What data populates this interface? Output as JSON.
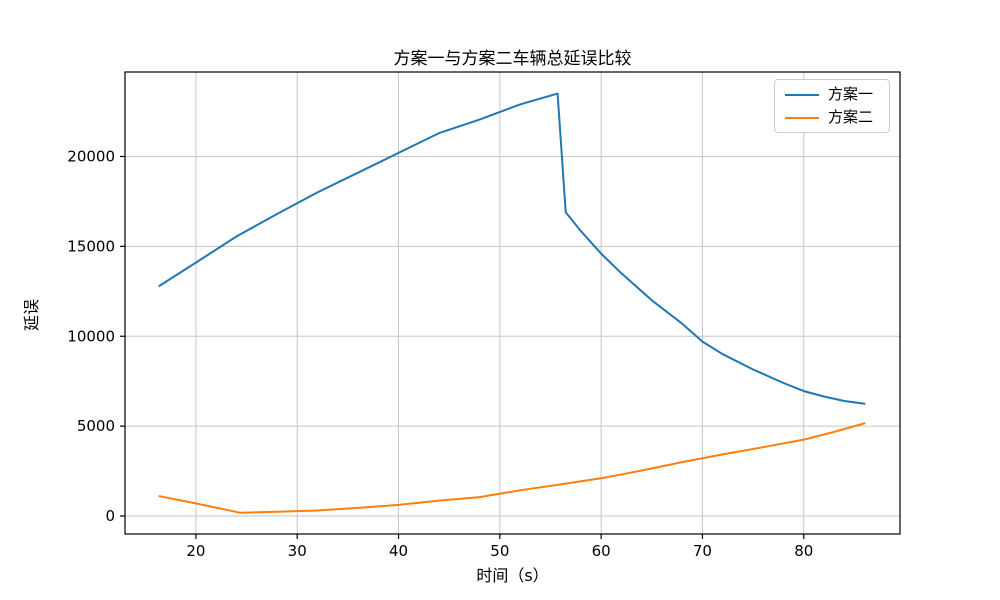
{
  "chart_data": {
    "type": "line",
    "title": "方案一与方案二车辆总延误比较",
    "xlabel": "时间（s）",
    "ylabel": "延误",
    "xlim": [
      13,
      89.5
    ],
    "ylim": [
      -1000,
      24700
    ],
    "xticks": [
      20,
      30,
      40,
      50,
      60,
      70,
      80
    ],
    "yticks": [
      0,
      5000,
      10000,
      15000,
      20000
    ],
    "grid": true,
    "grid_color": "#c6c6c6",
    "spine_color": "#000000",
    "background": "#ffffff",
    "legend_position": "upper right",
    "series": [
      {
        "name": "方案一",
        "color": "#1f77b4",
        "points": [
          [
            16.4,
            12800
          ],
          [
            20,
            14100
          ],
          [
            24,
            15550
          ],
          [
            28,
            16800
          ],
          [
            32,
            18000
          ],
          [
            36,
            19100
          ],
          [
            40,
            20200
          ],
          [
            44,
            21300
          ],
          [
            48,
            22050
          ],
          [
            52,
            22900
          ],
          [
            55.7,
            23500
          ],
          [
            56.5,
            16900
          ],
          [
            58,
            15850
          ],
          [
            60,
            14600
          ],
          [
            62,
            13500
          ],
          [
            65,
            12000
          ],
          [
            68,
            10700
          ],
          [
            70,
            9700
          ],
          [
            72,
            9000
          ],
          [
            75,
            8150
          ],
          [
            78,
            7400
          ],
          [
            80,
            6950
          ],
          [
            82,
            6650
          ],
          [
            84,
            6400
          ],
          [
            86,
            6250
          ]
        ]
      },
      {
        "name": "方案二",
        "color": "#ff7f0e",
        "points": [
          [
            16.4,
            1100
          ],
          [
            20,
            700
          ],
          [
            24.4,
            180
          ],
          [
            28,
            240
          ],
          [
            32,
            310
          ],
          [
            36,
            450
          ],
          [
            40,
            620
          ],
          [
            44,
            860
          ],
          [
            48,
            1050
          ],
          [
            52,
            1430
          ],
          [
            56,
            1760
          ],
          [
            60,
            2100
          ],
          [
            64,
            2530
          ],
          [
            68,
            3000
          ],
          [
            72,
            3430
          ],
          [
            76,
            3830
          ],
          [
            80,
            4250
          ],
          [
            83,
            4680
          ],
          [
            86,
            5150
          ]
        ]
      }
    ]
  }
}
